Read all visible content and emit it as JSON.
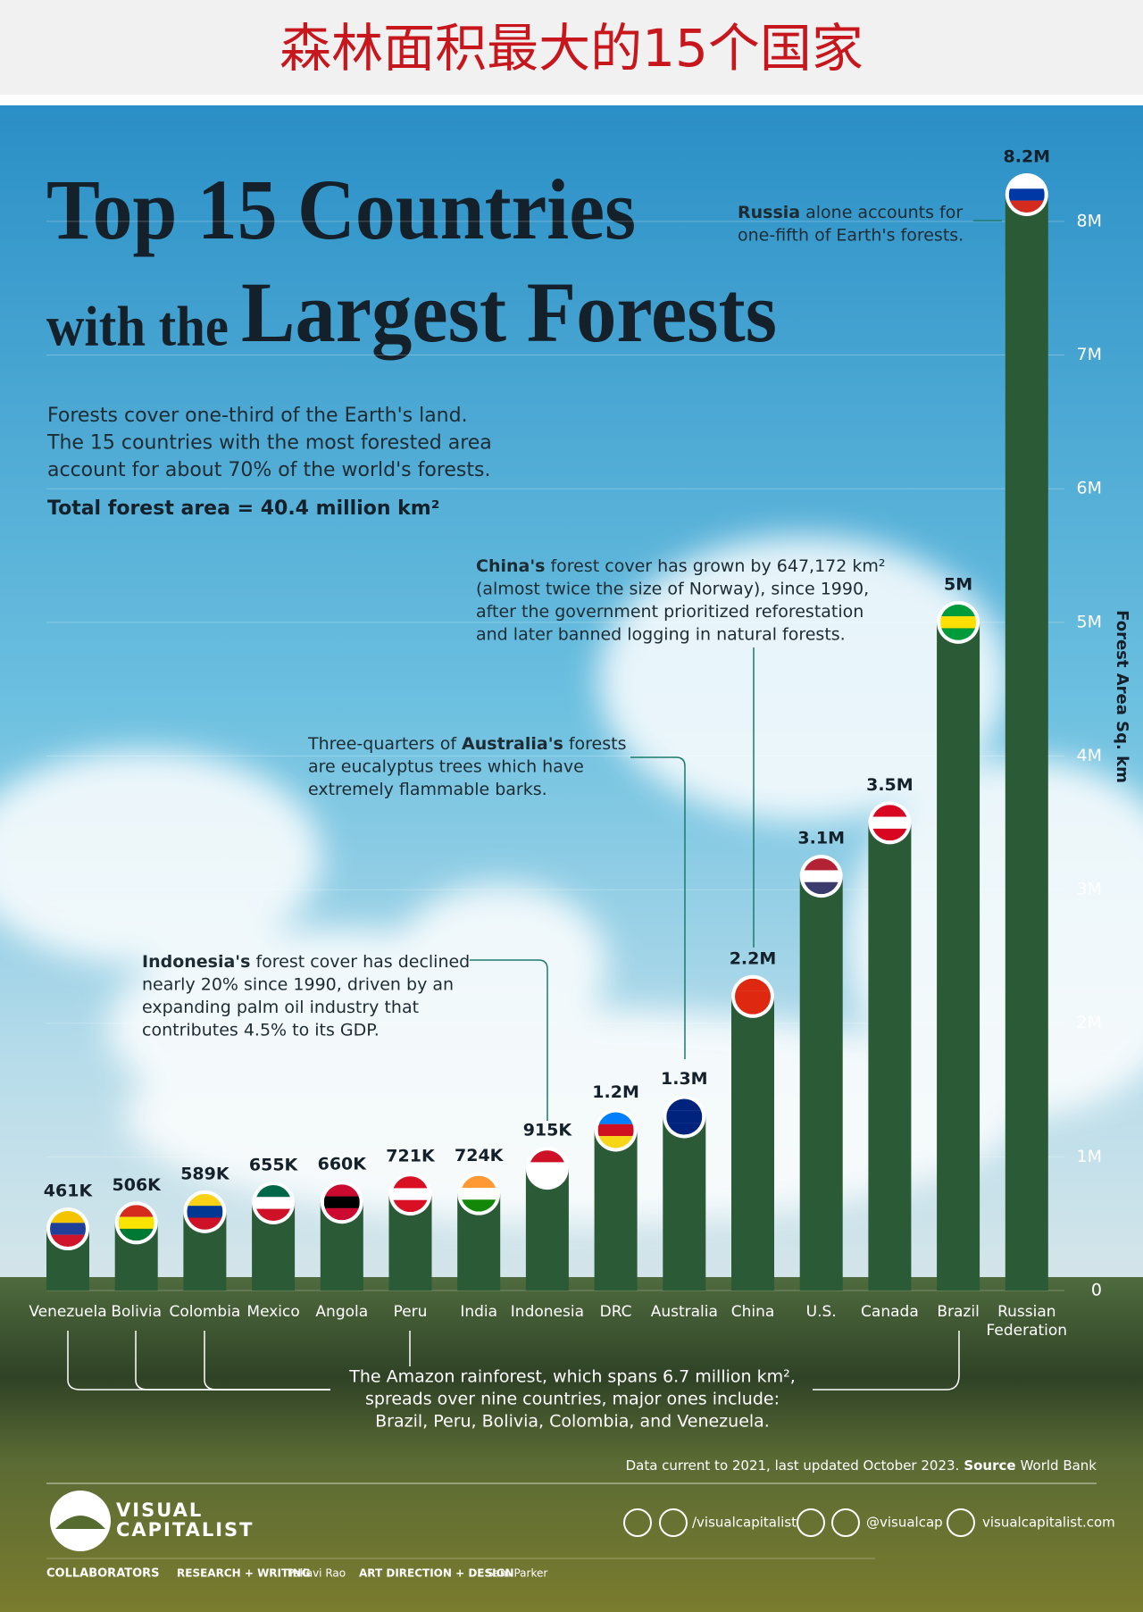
{
  "banner": "森林面积最大的15个国家",
  "chart_data": {
    "type": "bar",
    "title": {
      "line1": "Top 15 Countries",
      "line2a": "with the",
      "line2b": "Largest Forests"
    },
    "intro": [
      "Forests cover one-third of the Earth's land.",
      "The 15 countries with the most forested area",
      "account for about 70% of the world's forests."
    ],
    "total": "Total forest area = 40.4 million km²",
    "y_label": "Forest Area Sq. km",
    "categories": [
      "Venezuela",
      "Bolivia",
      "Colombia",
      "Mexico",
      "Angola",
      "Peru",
      "India",
      "Indonesia",
      "DRC",
      "Australia",
      "China",
      "U.S.",
      "Canada",
      "Brazil",
      "Russian Federation"
    ],
    "values": [
      461000,
      506000,
      589000,
      655000,
      660000,
      721000,
      724000,
      915000,
      1200000,
      1300000,
      2200000,
      3100000,
      3500000,
      5000000,
      8200000
    ],
    "value_labels": [
      "461K",
      "506K",
      "589K",
      "655K",
      "660K",
      "721K",
      "724K",
      "915K",
      "1.2M",
      "1.3M",
      "2.2M",
      "3.1M",
      "3.5M",
      "5M",
      "8.2M"
    ],
    "color": "#2b5a36",
    "ylim": [
      0,
      8200000
    ],
    "yticks": [
      0,
      {
        "value": 1000000,
        "label": "1M"
      },
      {
        "value": 2000000,
        "label": "2M"
      },
      {
        "value": 3000000,
        "label": "3M"
      },
      {
        "value": 4000000,
        "label": "4M"
      },
      {
        "value": 5000000,
        "label": "5M"
      },
      {
        "value": 6000000,
        "label": "6M"
      },
      {
        "value": 7000000,
        "label": "7M"
      },
      {
        "value": 8000000,
        "label": "8M"
      }
    ],
    "grid": true,
    "annotations": [
      {
        "lead": "Russia",
        "lines": [
          "alone accounts for",
          "one-fifth of Earth's forests."
        ]
      },
      {
        "lead": "China's",
        "lines": [
          "forest cover has grown by 647,172 km²",
          "(almost twice the size of Norway), since 1990,",
          "after the government prioritized reforestation",
          "and later banned logging in natural forests."
        ]
      },
      {
        "lead": "Three-quarters of",
        "bold": "Australia's",
        "lines": [
          "forests",
          "are eucalyptus trees which have",
          "extremely flammable barks."
        ]
      },
      {
        "lead": "Indonesia's",
        "lines": [
          "forest cover has declined",
          "nearly 20% since 1990, driven by an",
          "expanding palm oil industry that",
          "contributes 4.5% to its GDP."
        ]
      },
      {
        "lines": [
          "The Amazon rainforest, which spans 6.7 million km²,",
          "spreads over nine countries, major ones include:",
          "Brazil, Peru, Bolivia, Colombia, and Venezuela."
        ]
      }
    ]
  },
  "footer": {
    "source_text": "Data current to 2021, last updated October 2023.",
    "source_label": "Source",
    "source": "World Bank",
    "logo": [
      "VISUAL",
      "CAPITALIST"
    ],
    "social": [
      "/visualcapitalist",
      "@visualcap",
      "visualcapitalist.com"
    ],
    "credits": [
      "COLLABORATORS",
      "RESEARCH + WRITING",
      "Pallavi Rao",
      "ART DIRECTION + DESIGN",
      "Sam Parker"
    ]
  }
}
